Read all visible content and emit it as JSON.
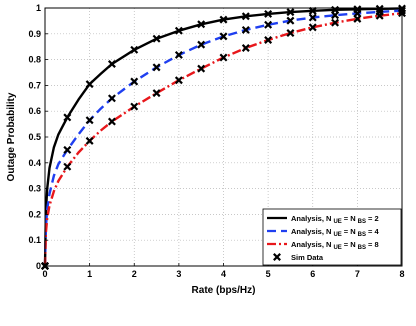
{
  "chart_data": {
    "type": "line",
    "xlabel": "Rate (bps/Hz)",
    "ylabel": "Outage Probability",
    "xlim": [
      0,
      8
    ],
    "ylim": [
      0,
      1
    ],
    "x_ticks": [
      "0",
      "1",
      "2",
      "3",
      "4",
      "5",
      "6",
      "7",
      "8"
    ],
    "y_ticks": [
      "0",
      "0.1",
      "0.2",
      "0.3",
      "0.4",
      "0.5",
      "0.6",
      "0.7",
      "0.8",
      "0.9",
      "1"
    ],
    "grid": "dotted",
    "legend_position": "bottom-right",
    "series": [
      {
        "name": "Analysis, N UE = N BS = 2",
        "legend_parts": [
          "Analysis, N",
          "UE",
          "= N",
          "BS",
          "= 2"
        ],
        "color": "#000000",
        "style": "solid",
        "x": [
          0,
          0.02,
          0.05,
          0.1,
          0.2,
          0.3,
          0.5,
          0.75,
          1.0,
          1.25,
          1.5,
          2.0,
          2.5,
          3.0,
          3.5,
          4.0,
          4.5,
          5.0,
          5.5,
          6.0,
          6.5,
          7.0,
          7.5,
          8.0
        ],
        "y": [
          0,
          0.21,
          0.3,
          0.38,
          0.46,
          0.51,
          0.576,
          0.645,
          0.705,
          0.745,
          0.783,
          0.838,
          0.881,
          0.912,
          0.937,
          0.955,
          0.968,
          0.977,
          0.984,
          0.989,
          0.993,
          0.995,
          0.997,
          0.998
        ]
      },
      {
        "name": "Analysis, N UE = N BS = 4",
        "legend_parts": [
          "Analysis, N",
          "UE",
          "= N",
          "BS",
          "= 4"
        ],
        "color": "#1f3ff0",
        "style": "dashed",
        "x": [
          0,
          0.02,
          0.05,
          0.1,
          0.2,
          0.3,
          0.5,
          0.75,
          1.0,
          1.25,
          1.5,
          2.0,
          2.5,
          3.0,
          3.5,
          4.0,
          4.5,
          5.0,
          5.5,
          6.0,
          6.5,
          7.0,
          7.5,
          8.0
        ],
        "y": [
          0,
          0.15,
          0.22,
          0.28,
          0.35,
          0.395,
          0.45,
          0.51,
          0.565,
          0.61,
          0.65,
          0.715,
          0.77,
          0.818,
          0.858,
          0.89,
          0.915,
          0.935,
          0.951,
          0.963,
          0.972,
          0.979,
          0.985,
          0.99
        ]
      },
      {
        "name": "Analysis, N UE = N BS = 8",
        "legend_parts": [
          "Analysis, N",
          "UE",
          "= N",
          "BS",
          "= 8"
        ],
        "color": "#e8171b",
        "style": "dashdot",
        "x": [
          0,
          0.02,
          0.05,
          0.1,
          0.2,
          0.3,
          0.5,
          0.75,
          1.0,
          1.25,
          1.5,
          2.0,
          2.5,
          3.0,
          3.5,
          4.0,
          4.5,
          5.0,
          5.5,
          6.0,
          6.5,
          7.0,
          7.5,
          8.0
        ],
        "y": [
          0,
          0.13,
          0.185,
          0.235,
          0.29,
          0.33,
          0.385,
          0.44,
          0.485,
          0.525,
          0.56,
          0.618,
          0.67,
          0.72,
          0.765,
          0.808,
          0.845,
          0.876,
          0.903,
          0.925,
          0.943,
          0.958,
          0.97,
          0.98
        ]
      },
      {
        "name": "Sim Data",
        "marker": "x",
        "color": "#000000",
        "points": [
          {
            "x": 0,
            "y": [
              0,
              0,
              0
            ]
          },
          {
            "x": 0.5,
            "y": [
              0.576,
              0.45,
              0.385
            ]
          },
          {
            "x": 1.0,
            "y": [
              0.705,
              0.565,
              0.485
            ]
          },
          {
            "x": 1.5,
            "y": [
              0.783,
              0.65,
              0.56
            ]
          },
          {
            "x": 2.0,
            "y": [
              0.838,
              0.715,
              0.618
            ]
          },
          {
            "x": 2.5,
            "y": [
              0.881,
              0.77,
              0.67
            ]
          },
          {
            "x": 3.0,
            "y": [
              0.912,
              0.818,
              0.72
            ]
          },
          {
            "x": 3.5,
            "y": [
              0.937,
              0.858,
              0.765
            ]
          },
          {
            "x": 4.0,
            "y": [
              0.955,
              0.89,
              0.808
            ]
          },
          {
            "x": 4.5,
            "y": [
              0.968,
              0.915,
              0.845
            ]
          },
          {
            "x": 5.0,
            "y": [
              0.977,
              0.935,
              0.876
            ]
          },
          {
            "x": 5.5,
            "y": [
              0.984,
              0.951,
              0.903
            ]
          },
          {
            "x": 6.0,
            "y": [
              0.989,
              0.963,
              0.925
            ]
          },
          {
            "x": 6.5,
            "y": [
              0.993,
              0.972,
              0.943
            ]
          },
          {
            "x": 7.0,
            "y": [
              0.995,
              0.979,
              0.958
            ]
          },
          {
            "x": 7.5,
            "y": [
              0.997,
              0.985,
              0.97
            ]
          },
          {
            "x": 8.0,
            "y": [
              0.998,
              0.99,
              0.98
            ]
          }
        ]
      }
    ]
  }
}
